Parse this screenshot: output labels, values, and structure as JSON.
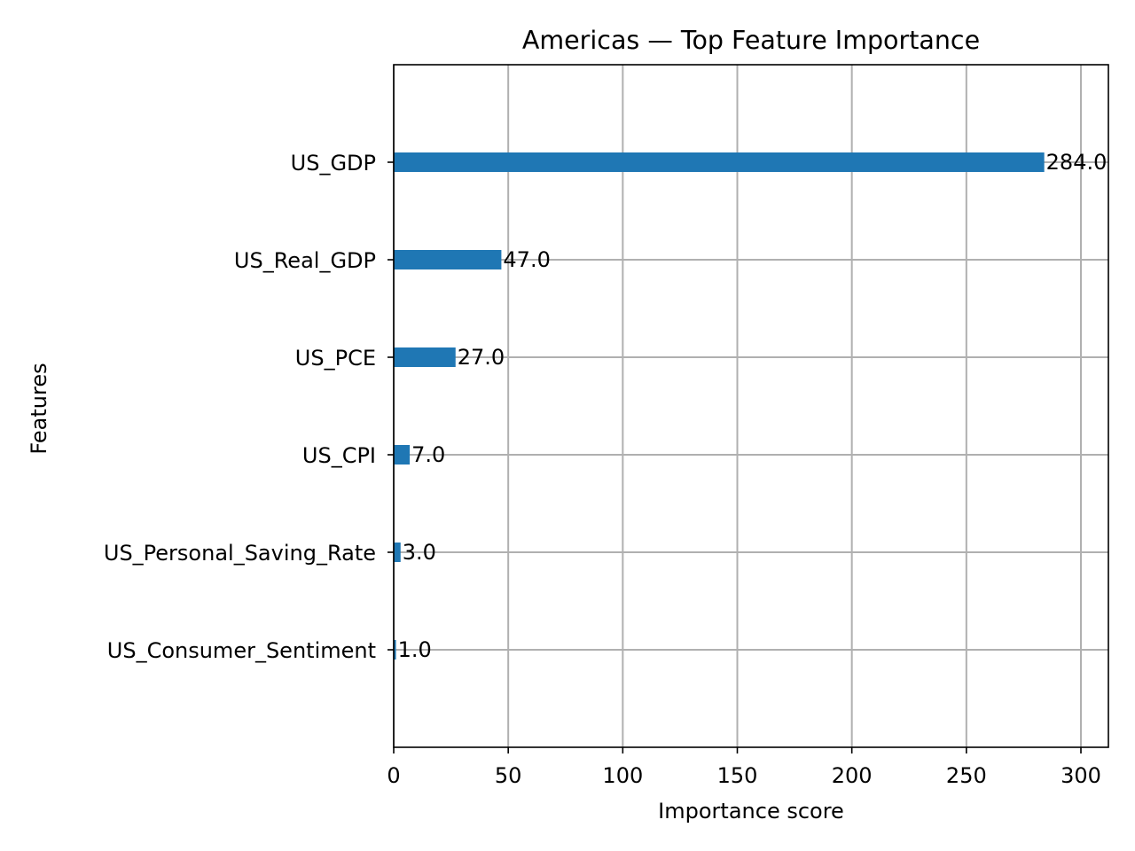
{
  "chart_data": {
    "type": "bar",
    "orientation": "horizontal",
    "title": "Americas — Top Feature Importance",
    "xlabel": "Importance score",
    "ylabel": "Features",
    "categories": [
      "US_Consumer_Sentiment",
      "US_Personal_Saving_Rate",
      "US_CPI",
      "US_PCE",
      "US_Real_GDP",
      "US_GDP"
    ],
    "values": [
      1,
      3,
      7,
      27,
      47,
      284
    ],
    "data_labels": [
      "1.0",
      "3.0",
      "7.0",
      "27.0",
      "47.0",
      "284.0"
    ],
    "xticks": [
      0,
      50,
      100,
      150,
      200,
      250,
      300
    ],
    "xlim": [
      0,
      312
    ],
    "ylim": [
      -1,
      6
    ],
    "grid": true,
    "legend": "none",
    "bar_color": "#1f77b4"
  }
}
